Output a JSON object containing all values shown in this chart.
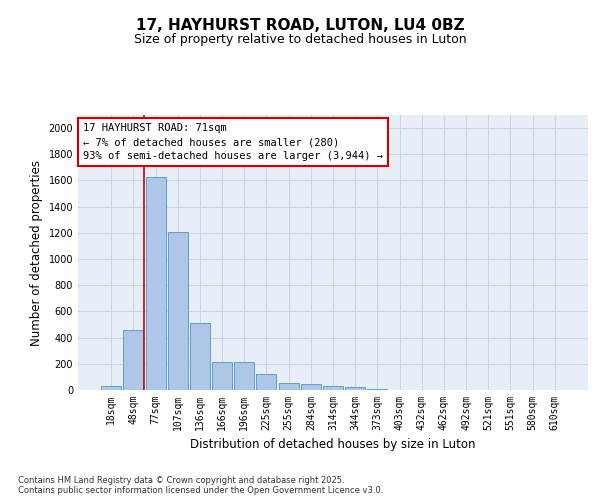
{
  "title": "17, HAYHURST ROAD, LUTON, LU4 0BZ",
  "subtitle": "Size of property relative to detached houses in Luton",
  "xlabel": "Distribution of detached houses by size in Luton",
  "ylabel": "Number of detached properties",
  "categories": [
    "18sqm",
    "48sqm",
    "77sqm",
    "107sqm",
    "136sqm",
    "166sqm",
    "196sqm",
    "225sqm",
    "255sqm",
    "284sqm",
    "314sqm",
    "344sqm",
    "373sqm",
    "403sqm",
    "432sqm",
    "462sqm",
    "492sqm",
    "521sqm",
    "551sqm",
    "580sqm",
    "610sqm"
  ],
  "values": [
    30,
    460,
    1625,
    1210,
    510,
    215,
    215,
    125,
    50,
    45,
    30,
    20,
    10,
    0,
    0,
    0,
    0,
    0,
    0,
    0,
    0
  ],
  "bar_color": "#aec6e8",
  "bar_edge_color": "#5a9fd4",
  "vline_color": "#cc0000",
  "annotation_box_text": "17 HAYHURST ROAD: 71sqm\n← 7% of detached houses are smaller (280)\n93% of semi-detached houses are larger (3,944) →",
  "annotation_box_color": "#cc0000",
  "ylim": [
    0,
    2100
  ],
  "yticks": [
    0,
    200,
    400,
    600,
    800,
    1000,
    1200,
    1400,
    1600,
    1800,
    2000
  ],
  "grid_color": "#c8d4e8",
  "bg_color": "#e8eef8",
  "footnote": "Contains HM Land Registry data © Crown copyright and database right 2025.\nContains public sector information licensed under the Open Government Licence v3.0.",
  "title_fontsize": 11,
  "subtitle_fontsize": 9,
  "label_fontsize": 8.5,
  "tick_fontsize": 7,
  "annot_fontsize": 7.5,
  "footnote_fontsize": 6
}
